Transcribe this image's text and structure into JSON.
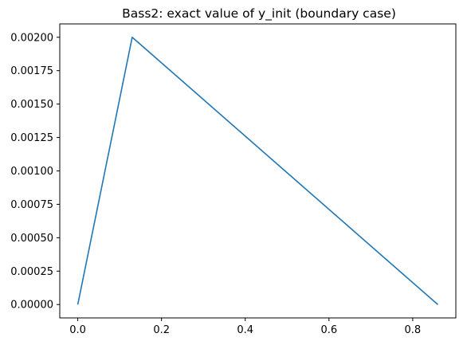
{
  "chart_data": {
    "type": "line",
    "title": "Bass2: exact value of y_init (boundary case)",
    "xlabel": "",
    "ylabel": "",
    "xlim": [
      -0.043,
      0.903
    ],
    "ylim": [
      -0.0001,
      0.0021
    ],
    "xticks": [
      0.0,
      0.2,
      0.4,
      0.6,
      0.8
    ],
    "xtick_labels": [
      "0.0",
      "0.2",
      "0.4",
      "0.6",
      "0.8"
    ],
    "yticks": [
      0.0,
      0.00025,
      0.0005,
      0.00075,
      0.001,
      0.00125,
      0.0015,
      0.00175,
      0.002
    ],
    "ytick_labels": [
      "0.00000",
      "0.00025",
      "0.00050",
      "0.00075",
      "0.00100",
      "0.00125",
      "0.00150",
      "0.00175",
      "0.00200"
    ],
    "grid": false,
    "legend": "none",
    "series": [
      {
        "color": "#1f77b4",
        "x": [
          0.0,
          0.13,
          0.86
        ],
        "y": [
          0.0,
          0.002,
          0.0
        ]
      }
    ]
  }
}
